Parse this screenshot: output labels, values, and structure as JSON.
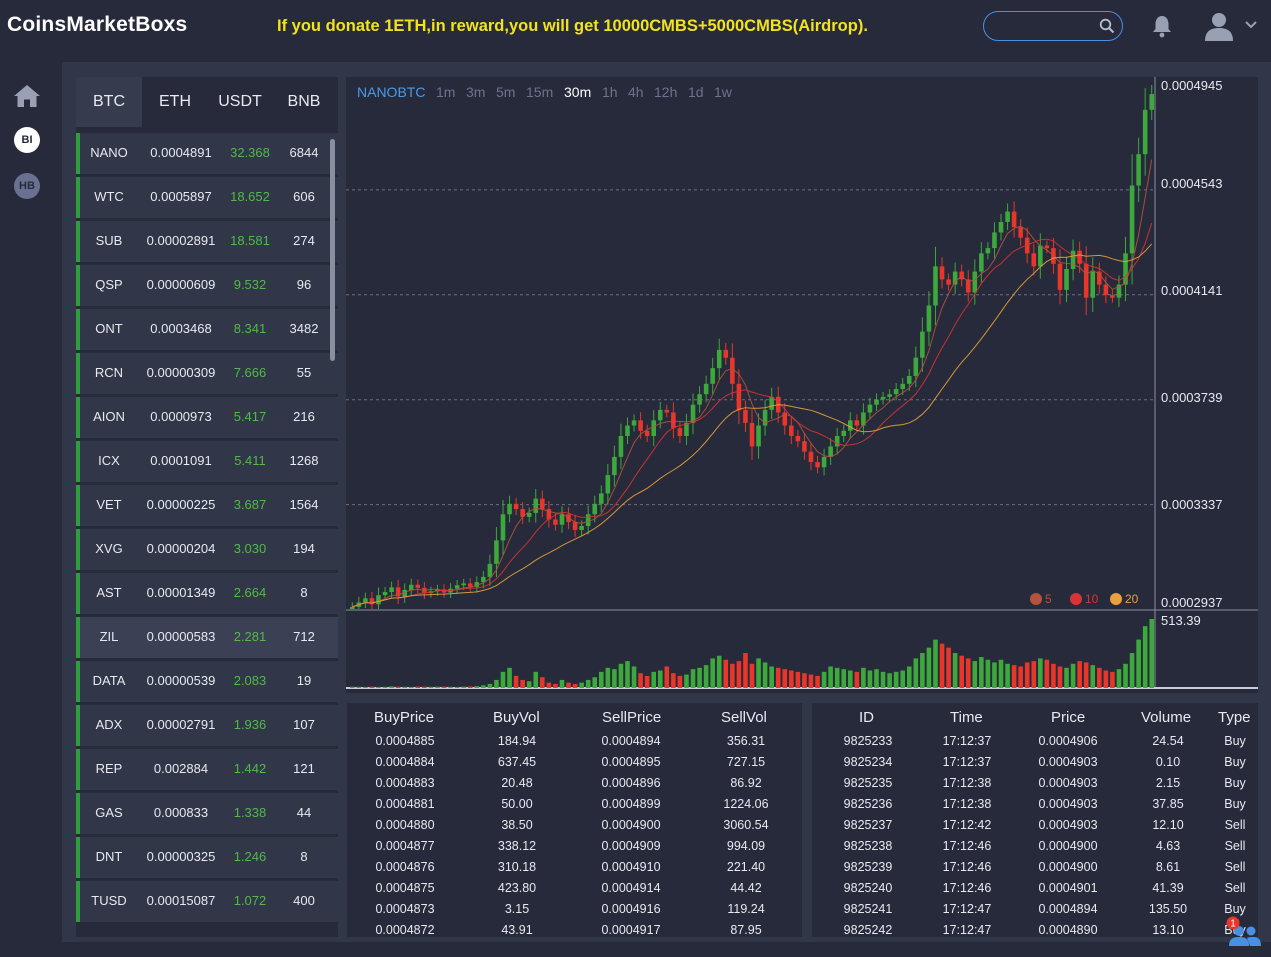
{
  "header": {
    "brand": "CoinsMarketBoxs",
    "banner": "If you donate 1ETH,in reward,you will get 10000CMBS+5000CMBS(Airdrop).",
    "search_value": "",
    "icons": [
      "search-icon",
      "bell-icon",
      "user-icon",
      "chevron-down-icon"
    ]
  },
  "sidenav": {
    "items": [
      {
        "icon": "home-icon"
      },
      {
        "label": "BI"
      },
      {
        "label": "HB"
      }
    ]
  },
  "market": {
    "tabs": [
      "BTC",
      "ETH",
      "USDT",
      "BNB"
    ],
    "active_tab": "BTC",
    "selected_symbol": "ZIL",
    "rows": [
      {
        "sym": "NANO",
        "price": "0.0004891",
        "change": "32.368",
        "vol": "6844"
      },
      {
        "sym": "WTC",
        "price": "0.0005897",
        "change": "18.652",
        "vol": "606"
      },
      {
        "sym": "SUB",
        "price": "0.00002891",
        "change": "18.581",
        "vol": "274"
      },
      {
        "sym": "QSP",
        "price": "0.00000609",
        "change": "9.532",
        "vol": "96"
      },
      {
        "sym": "ONT",
        "price": "0.0003468",
        "change": "8.341",
        "vol": "3482"
      },
      {
        "sym": "RCN",
        "price": "0.00000309",
        "change": "7.666",
        "vol": "55"
      },
      {
        "sym": "AION",
        "price": "0.0000973",
        "change": "5.417",
        "vol": "216"
      },
      {
        "sym": "ICX",
        "price": "0.0001091",
        "change": "5.411",
        "vol": "1268"
      },
      {
        "sym": "VET",
        "price": "0.00000225",
        "change": "3.687",
        "vol": "1564"
      },
      {
        "sym": "XVG",
        "price": "0.00000204",
        "change": "3.030",
        "vol": "194"
      },
      {
        "sym": "AST",
        "price": "0.00001349",
        "change": "2.664",
        "vol": "8"
      },
      {
        "sym": "ZIL",
        "price": "0.00000583",
        "change": "2.281",
        "vol": "712"
      },
      {
        "sym": "DATA",
        "price": "0.00000539",
        "change": "2.083",
        "vol": "19"
      },
      {
        "sym": "ADX",
        "price": "0.00002791",
        "change": "1.936",
        "vol": "107"
      },
      {
        "sym": "REP",
        "price": "0.002884",
        "change": "1.442",
        "vol": "121"
      },
      {
        "sym": "GAS",
        "price": "0.000833",
        "change": "1.338",
        "vol": "44"
      },
      {
        "sym": "DNT",
        "price": "0.00000325",
        "change": "1.246",
        "vol": "8"
      },
      {
        "sym": "TUSD",
        "price": "0.00015087",
        "change": "1.072",
        "vol": "400"
      }
    ]
  },
  "chart": {
    "pair": "NANOBTC",
    "timeframes": [
      "1m",
      "3m",
      "5m",
      "15m",
      "30m",
      "1h",
      "4h",
      "12h",
      "1d",
      "1w"
    ],
    "active_timeframe": "30m",
    "price_levels": [
      "0.0004945",
      "0.0004543",
      "0.0004141",
      "0.0003739",
      "0.0003337",
      "0.0002937"
    ],
    "volume_max_label": "513.39",
    "ma_legend": [
      {
        "label": "5",
        "color": "#b5533a"
      },
      {
        "label": "10",
        "color": "#d93333"
      },
      {
        "label": "20",
        "color": "#e8a13c"
      }
    ],
    "colors": {
      "up": "#3da83b",
      "down": "#e8362b",
      "grid": "#6b7080"
    }
  },
  "chart_data": {
    "type": "candlestick",
    "ylim": [
      0.0002937,
      0.0004945
    ],
    "yticks": [
      0.0002937,
      0.0003337,
      0.0003739,
      0.0004141,
      0.0004543,
      0.0004945
    ],
    "close": [
      0.0002945,
      0.0002962,
      0.0002978,
      0.0002955,
      0.000299,
      0.0003002,
      0.000302,
      0.0002985,
      0.000301,
      0.000303,
      0.0003018,
      0.0002998,
      0.0003005,
      0.0003012,
      0.0003,
      0.0003015,
      0.0003028,
      0.0003035,
      0.0003022,
      0.000304,
      0.000306,
      0.000311,
      0.00032,
      0.00033,
      0.000334,
      0.000332,
      0.000329,
      0.0003305,
      0.000336,
      0.000332,
      0.000328,
      0.000326,
      0.00033,
      0.000327,
      0.000324,
      0.0003255,
      0.00033,
      0.000334,
      0.000338,
      0.000345,
      0.000352,
      0.00036,
      0.000364,
      0.000366,
      0.000362,
      0.00036,
      0.000366,
      0.00037,
      0.000369,
      0.000363,
      0.00036,
      0.000365,
      0.000372,
      0.000376,
      0.00038,
      0.000386,
      0.000393,
      0.00039,
      0.00038,
      0.00037,
      0.000365,
      0.000356,
      0.000364,
      0.00037,
      0.000375,
      0.000369,
      0.000364,
      0.00036,
      0.000358,
      0.000354,
      0.00035,
      0.000348,
      0.000352,
      0.000356,
      0.00036,
      0.000362,
      0.000366,
      0.000364,
      0.000369,
      0.000372,
      0.000374,
      0.000375,
      0.000376,
      0.000378,
      0.00038,
      0.000383,
      0.00039,
      0.0004,
      0.00041,
      0.000425,
      0.00042,
      0.000418,
      0.000423,
      0.00042,
      0.000415,
      0.000423,
      0.00043,
      0.000432,
      0.000438,
      0.000442,
      0.000446,
      0.00044,
      0.000436,
      0.00043,
      0.000425,
      0.000433,
      0.000432,
      0.000426,
      0.000416,
      0.000424,
      0.000431,
      0.000426,
      0.000413,
      0.000423,
      0.000418,
      0.000414,
      0.000413,
      0.000418,
      0.00043,
      0.000456,
      0.000468,
      0.000485,
      0.000491
    ],
    "volume": [
      10,
      9,
      8,
      11,
      8,
      9,
      12,
      10,
      9,
      8,
      11,
      10,
      9,
      10,
      11,
      9,
      8,
      10,
      12,
      14,
      20,
      30,
      60,
      120,
      150,
      90,
      60,
      50,
      120,
      80,
      40,
      30,
      60,
      40,
      30,
      40,
      60,
      80,
      120,
      150,
      140,
      180,
      200,
      160,
      110,
      90,
      120,
      130,
      160,
      110,
      90,
      100,
      140,
      150,
      170,
      220,
      240,
      210,
      180,
      200,
      260,
      180,
      220,
      190,
      160,
      150,
      140,
      130,
      120,
      110,
      100,
      90,
      120,
      160,
      150,
      140,
      130,
      120,
      150,
      130,
      140,
      120,
      110,
      120,
      130,
      160,
      220,
      260,
      300,
      360,
      330,
      300,
      260,
      240,
      220,
      200,
      230,
      210,
      190,
      210,
      180,
      170,
      160,
      190,
      200,
      220,
      210,
      180,
      160,
      150,
      180,
      200,
      190,
      170,
      150,
      130,
      120,
      140,
      180,
      260,
      360,
      460,
      513
    ],
    "ma": [
      5,
      10,
      20
    ]
  },
  "orderbook": {
    "headers": [
      "BuyPrice",
      "BuyVol",
      "SellPrice",
      "SellVol"
    ],
    "rows": [
      [
        "0.0004885",
        "184.94",
        "0.0004894",
        "356.31"
      ],
      [
        "0.0004884",
        "637.45",
        "0.0004895",
        "727.15"
      ],
      [
        "0.0004883",
        "20.48",
        "0.0004896",
        "86.92"
      ],
      [
        "0.0004881",
        "50.00",
        "0.0004899",
        "1224.06"
      ],
      [
        "0.0004880",
        "38.50",
        "0.0004900",
        "3060.54"
      ],
      [
        "0.0004877",
        "338.12",
        "0.0004909",
        "994.09"
      ],
      [
        "0.0004876",
        "310.18",
        "0.0004910",
        "221.40"
      ],
      [
        "0.0004875",
        "423.80",
        "0.0004914",
        "44.42"
      ],
      [
        "0.0004873",
        "3.15",
        "0.0004916",
        "119.24"
      ],
      [
        "0.0004872",
        "43.91",
        "0.0004917",
        "87.95"
      ]
    ]
  },
  "trades": {
    "headers": [
      "ID",
      "Time",
      "Price",
      "Volume",
      "Type"
    ],
    "rows": [
      [
        "9825233",
        "17:12:37",
        "0.0004906",
        "24.54",
        "Buy"
      ],
      [
        "9825234",
        "17:12:37",
        "0.0004903",
        "0.10",
        "Buy"
      ],
      [
        "9825235",
        "17:12:38",
        "0.0004903",
        "2.15",
        "Buy"
      ],
      [
        "9825236",
        "17:12:38",
        "0.0004903",
        "37.85",
        "Buy"
      ],
      [
        "9825237",
        "17:12:42",
        "0.0004903",
        "12.10",
        "Sell"
      ],
      [
        "9825238",
        "17:12:46",
        "0.0004900",
        "4.63",
        "Sell"
      ],
      [
        "9825239",
        "17:12:46",
        "0.0004900",
        "8.61",
        "Sell"
      ],
      [
        "9825240",
        "17:12:46",
        "0.0004901",
        "41.39",
        "Sell"
      ],
      [
        "9825241",
        "17:12:47",
        "0.0004894",
        "135.50",
        "Buy"
      ],
      [
        "9825242",
        "17:12:47",
        "0.0004890",
        "13.10",
        "Buy"
      ]
    ]
  },
  "help": {
    "icon": "users-icon",
    "badge": "1"
  }
}
